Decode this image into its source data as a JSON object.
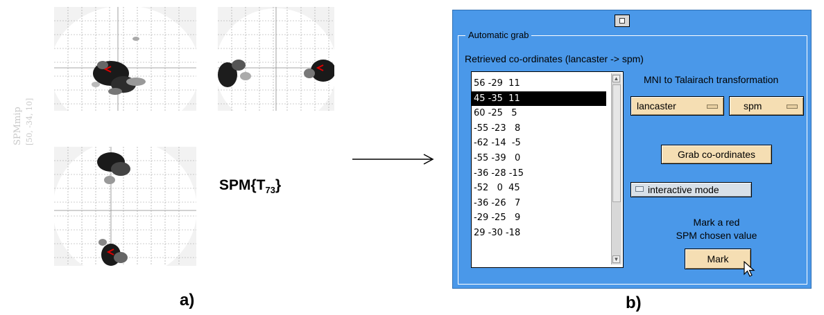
{
  "panel_a": {
    "side_title": "SPMmip",
    "side_coords": "[50, -34, 10]",
    "stat_label": "SPM{T",
    "stat_df": "73",
    "stat_close": "}",
    "figure_label": "a)"
  },
  "panel_b": {
    "figure_label": "b)",
    "frame_title": "Automatic grab",
    "subtitle": "Retrieved co-ordinates (lancaster -> spm)",
    "coordinates": [
      "56 -29  11",
      "45 -35  11",
      "60 -25   5",
      "-55 -23   8",
      "-62 -14  -5",
      "-55 -39   0",
      "-36 -28 -15",
      "-52   0  45",
      "-36 -26   7",
      "-29 -25   9",
      "29 -30 -18"
    ],
    "selected_index": 1,
    "mni_label": "MNI to Talairach transformation",
    "from_option": "lancaster",
    "to_option": "spm",
    "grab_button": "Grab co-ordinates",
    "interactive_toggle": "interactive mode",
    "mark_text_1": "Mark a red",
    "mark_text_2": "SPM chosen value",
    "mark_button": "Mark"
  },
  "colors": {
    "panel_bg": "#4a98e9",
    "button_bg": "#f5deb3",
    "marker_red": "#e00000"
  },
  "icons": [
    "window-toggle-icon",
    "arrow-right-icon",
    "mouse-pointer-icon",
    "scroll-up-icon",
    "scroll-down-icon"
  ]
}
